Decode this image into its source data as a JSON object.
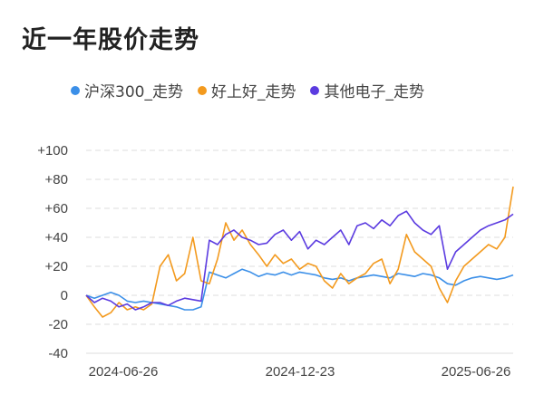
{
  "chart_data": {
    "type": "line",
    "title": "近一年股价走势",
    "x_ticks": [
      "2024-06-26",
      "2024-12-23",
      "2025-06-26"
    ],
    "y_ticks": [
      "+100",
      "+80",
      "+60",
      "+40",
      "+20",
      "0",
      "-20",
      "-40"
    ],
    "ylim": [
      -40,
      100
    ],
    "grid": true,
    "legend_position": "top",
    "series": [
      {
        "name": "沪深300_走势",
        "color": "#3b8fe8",
        "values": [
          0,
          -2,
          0,
          2,
          0,
          -4,
          -5,
          -4,
          -5,
          -6,
          -7,
          -8,
          -10,
          -10,
          -8,
          16,
          14,
          12,
          15,
          18,
          16,
          13,
          15,
          14,
          16,
          14,
          16,
          15,
          14,
          12,
          11,
          12,
          10,
          12,
          13,
          14,
          13,
          12,
          15,
          14,
          13,
          15,
          14,
          12,
          8,
          7,
          10,
          12,
          13,
          12,
          11,
          12,
          14
        ]
      },
      {
        "name": "好上好_走势",
        "color": "#f39a1e",
        "values": [
          0,
          -8,
          -15,
          -12,
          -5,
          -10,
          -8,
          -10,
          -6,
          20,
          28,
          10,
          15,
          40,
          10,
          8,
          25,
          50,
          38,
          45,
          35,
          28,
          20,
          28,
          22,
          25,
          18,
          22,
          20,
          10,
          5,
          15,
          8,
          12,
          15,
          22,
          25,
          8,
          18,
          42,
          30,
          25,
          20,
          5,
          -5,
          10,
          20,
          25,
          30,
          35,
          32,
          40,
          75
        ]
      },
      {
        "name": "其他电子_走势",
        "color": "#5b3be0",
        "values": [
          0,
          -5,
          -2,
          -4,
          -8,
          -6,
          -10,
          -8,
          -5,
          -5,
          -7,
          -4,
          -2,
          -3,
          -4,
          38,
          35,
          42,
          45,
          40,
          38,
          35,
          36,
          42,
          45,
          38,
          44,
          32,
          38,
          35,
          40,
          45,
          35,
          48,
          50,
          46,
          52,
          48,
          55,
          58,
          50,
          45,
          42,
          48,
          18,
          30,
          35,
          40,
          45,
          48,
          50,
          52,
          56
        ]
      }
    ]
  }
}
